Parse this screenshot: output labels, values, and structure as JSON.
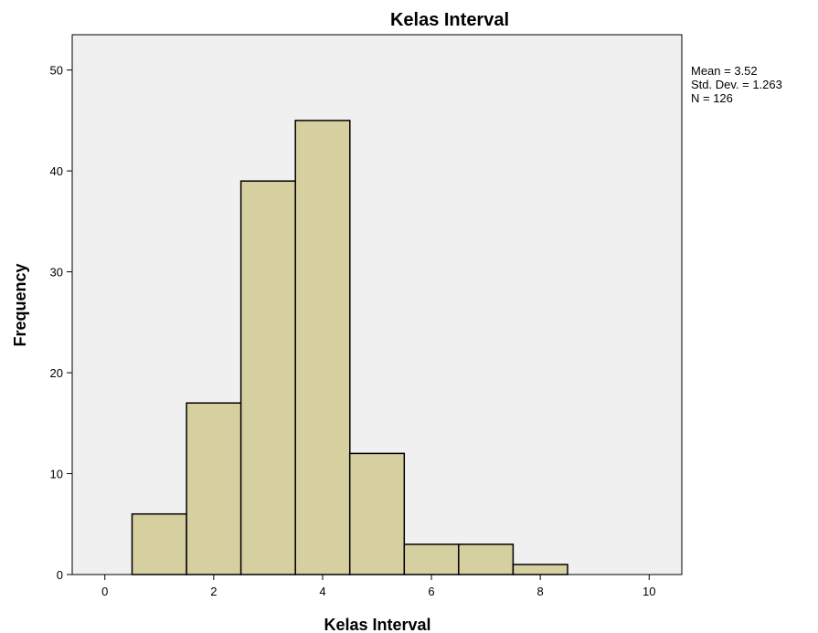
{
  "chart_data": {
    "type": "bar",
    "title": "Kelas Interval",
    "xlabel": "Kelas Interval",
    "ylabel": "Frequency",
    "bin_width": 1,
    "bin_centers": [
      1,
      2,
      3,
      4,
      5,
      6,
      7,
      8
    ],
    "values": [
      6,
      17,
      39,
      45,
      12,
      3,
      3,
      1
    ],
    "xlim": [
      -0.6,
      10.6
    ],
    "ylim": [
      0,
      53.5
    ],
    "x_ticks": [
      "0",
      "2",
      "4",
      "6",
      "8",
      "10"
    ],
    "y_ticks": [
      "0",
      "10",
      "20",
      "30",
      "40",
      "50"
    ],
    "grid": false,
    "legend": "none",
    "stats": [
      "Mean = 3.52",
      "Std. Dev. = 1.263",
      "N = 126"
    ]
  },
  "colors": {
    "bar_fill": "#d6cfa0",
    "bar_stroke": "#000000",
    "plot_background": "#f0f0f0",
    "plot_border": "#000000"
  }
}
